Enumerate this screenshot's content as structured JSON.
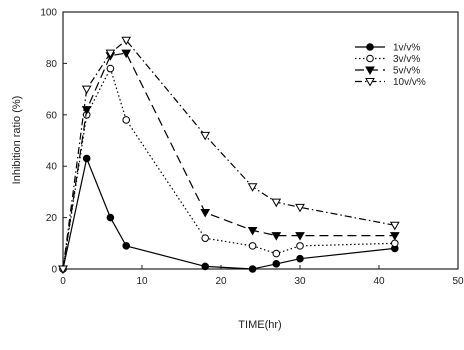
{
  "chart_data": {
    "type": "line",
    "xlabel": "TIME(hr)",
    "ylabel": "Inhibition ratio (%)",
    "xlim": [
      0,
      50
    ],
    "ylim": [
      0,
      100
    ],
    "xticks": [
      0,
      10,
      20,
      30,
      40,
      50
    ],
    "yticks": [
      0,
      20,
      40,
      60,
      80,
      100
    ],
    "grid": false,
    "legend_position": "top-right",
    "series": [
      {
        "name": "1v/v%",
        "marker": "filled-circle",
        "line_style": "solid",
        "color": "#000000",
        "x": [
          0,
          3,
          6,
          8,
          18,
          24,
          27,
          30,
          42
        ],
        "y": [
          0,
          43,
          20,
          9,
          1,
          0,
          2,
          4,
          8
        ]
      },
      {
        "name": "3v/v%",
        "marker": "open-circle",
        "line_style": "dotted",
        "color": "#000000",
        "x": [
          0,
          3,
          6,
          8,
          18,
          24,
          27,
          30,
          42
        ],
        "y": [
          0,
          60,
          78,
          58,
          12,
          9,
          6,
          9,
          10
        ]
      },
      {
        "name": "5v/v%",
        "marker": "filled-triangle-down",
        "line_style": "dashed",
        "color": "#000000",
        "x": [
          0,
          3,
          6,
          8,
          18,
          24,
          27,
          30,
          42
        ],
        "y": [
          0,
          62,
          83,
          84,
          22,
          15,
          13,
          13,
          13
        ]
      },
      {
        "name": "10v/v%",
        "marker": "open-triangle-down",
        "line_style": "dash-dot",
        "color": "#000000",
        "x": [
          0,
          3,
          6,
          8,
          18,
          24,
          27,
          30,
          42
        ],
        "y": [
          0,
          70,
          84,
          89,
          52,
          32,
          26,
          24,
          17
        ]
      }
    ]
  }
}
